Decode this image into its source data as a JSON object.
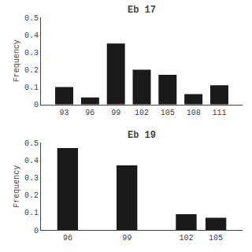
{
  "chart_data": [
    {
      "type": "bar",
      "title": "Eb 17",
      "categories": [
        "93",
        "96",
        "99",
        "102",
        "105",
        "108",
        "111"
      ],
      "values": [
        0.1,
        0.04,
        0.35,
        0.2,
        0.17,
        0.06,
        0.11
      ],
      "color": "#1a1a1a",
      "ylabel": "Frequency",
      "ylim": [
        0,
        0.5
      ],
      "yticks": [
        0,
        0.1,
        0.2,
        0.3,
        0.4,
        0.5
      ],
      "grid": false
    },
    {
      "type": "bar",
      "title": "Eb 19",
      "categories": [
        "96",
        null,
        "99",
        null,
        "102",
        "105"
      ],
      "values": [
        0.47,
        null,
        0.37,
        null,
        0.09,
        0.07
      ],
      "color": "#1a1a1a",
      "ylabel": "Frequency",
      "ylim": [
        0,
        0.5
      ],
      "yticks": [
        0,
        0.1,
        0.2,
        0.3,
        0.4,
        0.5
      ],
      "grid": false
    }
  ]
}
